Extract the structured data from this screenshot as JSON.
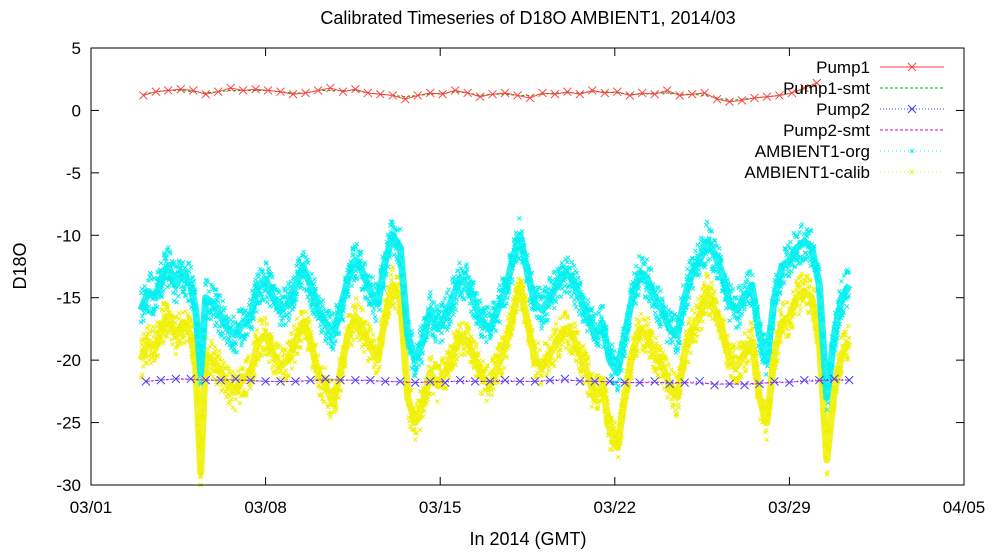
{
  "chart_data": {
    "type": "line",
    "title": "Calibrated Timeseries of D18O AMBIENT1, 2014/03",
    "xlabel": "In 2014 (GMT)",
    "ylabel": "D18O",
    "x_ticks": [
      "03/01",
      "03/08",
      "03/15",
      "03/22",
      "03/29",
      "04/05"
    ],
    "x_tick_days": [
      1,
      8,
      15,
      22,
      29,
      36
    ],
    "xlim": [
      1,
      36
    ],
    "ylim": [
      -30,
      5
    ],
    "y_ticks": [
      5,
      0,
      -5,
      -10,
      -15,
      -20,
      -25,
      -30
    ],
    "grid": false,
    "legend_position": "top-right",
    "series": [
      {
        "name": "Pump1",
        "color": "#ff4040",
        "marker": "x",
        "x": [
          3.1,
          3.6,
          4.1,
          4.6,
          5.1,
          5.6,
          6.1,
          6.6,
          7.1,
          7.6,
          8.1,
          8.6,
          9.1,
          9.6,
          10.1,
          10.6,
          11.1,
          11.6,
          12.1,
          12.6,
          13.1,
          13.6,
          14.1,
          14.6,
          15.1,
          15.6,
          16.1,
          16.6,
          17.1,
          17.6,
          18.1,
          18.6,
          19.1,
          19.6,
          20.1,
          20.6,
          21.1,
          21.6,
          22.1,
          22.6,
          23.1,
          23.6,
          24.1,
          24.6,
          25.1,
          25.6,
          26.1,
          26.6,
          27.1,
          27.6,
          28.1,
          28.6,
          29.1,
          29.6,
          30.1
        ],
        "y": [
          1.2,
          1.5,
          1.6,
          1.7,
          1.6,
          1.3,
          1.5,
          1.8,
          1.6,
          1.7,
          1.6,
          1.5,
          1.3,
          1.4,
          1.6,
          1.8,
          1.5,
          1.7,
          1.4,
          1.3,
          1.2,
          0.9,
          1.2,
          1.4,
          1.3,
          1.6,
          1.4,
          1.1,
          1.3,
          1.4,
          1.2,
          1.0,
          1.4,
          1.3,
          1.5,
          1.3,
          1.6,
          1.4,
          1.5,
          1.2,
          1.4,
          1.3,
          1.6,
          1.2,
          1.3,
          1.4,
          0.9,
          0.7,
          0.8,
          1.0,
          1.1,
          1.2,
          1.4,
          1.8,
          2.2
        ]
      },
      {
        "name": "Pump1-smt",
        "color": "#00b000",
        "marker": "none",
        "x": [
          3.1,
          3.6,
          4.1,
          4.6,
          5.1,
          5.6,
          6.1,
          6.6,
          7.1,
          7.6,
          8.1,
          8.6,
          9.1,
          9.6,
          10.1,
          10.6,
          11.1,
          11.6,
          12.1,
          12.6,
          13.1,
          13.6,
          14.1,
          14.6,
          15.1,
          15.6,
          16.1,
          16.6,
          17.1,
          17.6,
          18.1,
          18.6,
          19.1,
          19.6,
          20.1,
          20.6,
          21.1,
          21.6,
          22.1,
          22.6,
          23.1,
          23.6,
          24.1,
          24.6,
          25.1,
          25.6,
          26.1,
          26.6,
          27.1,
          27.6,
          28.1,
          28.6,
          29.1,
          29.6,
          30.1
        ],
        "y": [
          1.3,
          1.5,
          1.6,
          1.6,
          1.5,
          1.4,
          1.5,
          1.6,
          1.6,
          1.6,
          1.6,
          1.5,
          1.4,
          1.4,
          1.6,
          1.6,
          1.6,
          1.6,
          1.4,
          1.3,
          1.2,
          1.1,
          1.2,
          1.3,
          1.4,
          1.5,
          1.4,
          1.2,
          1.3,
          1.3,
          1.2,
          1.2,
          1.3,
          1.4,
          1.4,
          1.4,
          1.5,
          1.5,
          1.4,
          1.3,
          1.3,
          1.4,
          1.4,
          1.3,
          1.3,
          1.2,
          1.0,
          0.8,
          0.9,
          1.0,
          1.1,
          1.2,
          1.4,
          1.7,
          2.0
        ]
      },
      {
        "name": "Pump2",
        "color": "#4040ff",
        "marker": "x",
        "x": [
          3.2,
          3.8,
          4.4,
          5.0,
          5.6,
          6.2,
          6.8,
          7.4,
          8.0,
          8.6,
          9.2,
          9.8,
          10.4,
          11.0,
          11.6,
          12.2,
          12.8,
          13.4,
          14.0,
          14.6,
          15.2,
          15.8,
          16.4,
          17.0,
          17.6,
          18.2,
          18.8,
          19.4,
          20.0,
          20.6,
          21.2,
          21.8,
          22.4,
          23.0,
          23.6,
          24.2,
          24.8,
          25.4,
          26.0,
          26.6,
          27.2,
          27.8,
          28.4,
          29.0,
          29.6,
          30.2,
          30.8,
          31.4
        ],
        "y": [
          -21.7,
          -21.6,
          -21.5,
          -21.5,
          -21.6,
          -21.6,
          -21.5,
          -21.6,
          -21.7,
          -21.7,
          -21.7,
          -21.6,
          -21.5,
          -21.6,
          -21.6,
          -21.6,
          -21.7,
          -21.7,
          -21.8,
          -21.7,
          -21.8,
          -21.6,
          -21.7,
          -21.7,
          -21.6,
          -21.7,
          -21.7,
          -21.6,
          -21.5,
          -21.7,
          -21.7,
          -21.7,
          -21.8,
          -21.8,
          -21.7,
          -21.9,
          -21.8,
          -21.7,
          -22.0,
          -21.9,
          -22.0,
          -21.9,
          -21.7,
          -21.8,
          -21.6,
          -21.6,
          -21.5,
          -21.6
        ]
      },
      {
        "name": "Pump2-smt",
        "color": "#e000e0",
        "marker": "none",
        "x": [
          3.2,
          4.4,
          5.6,
          6.8,
          8.0,
          9.2,
          10.4,
          11.6,
          12.8,
          14.0,
          15.2,
          16.4,
          17.6,
          18.8,
          20.0,
          21.2,
          22.4,
          23.6,
          24.8,
          26.0,
          27.2,
          28.4,
          29.6,
          30.8,
          31.4
        ],
        "y": [
          -21.7,
          -21.5,
          -21.6,
          -21.6,
          -21.7,
          -21.7,
          -21.6,
          -21.6,
          -21.7,
          -21.8,
          -21.7,
          -21.7,
          -21.7,
          -21.7,
          -21.6,
          -21.7,
          -21.8,
          -21.8,
          -21.8,
          -21.9,
          -21.9,
          -21.8,
          -21.7,
          -21.6,
          -21.6
        ]
      },
      {
        "name": "AMBIENT1-org",
        "color": "#00f0f0",
        "marker": "dots",
        "x": [
          3.0,
          3.3,
          3.6,
          3.9,
          4.1,
          4.4,
          4.7,
          5.0,
          5.2,
          5.4,
          5.6,
          5.9,
          6.2,
          6.5,
          6.8,
          7.1,
          7.4,
          7.7,
          8.0,
          8.3,
          8.6,
          8.9,
          9.2,
          9.5,
          9.8,
          10.1,
          10.4,
          10.7,
          11.0,
          11.3,
          11.6,
          11.9,
          12.2,
          12.5,
          12.8,
          13.1,
          13.4,
          13.7,
          14.0,
          14.3,
          14.6,
          14.9,
          15.2,
          15.5,
          15.8,
          16.1,
          16.4,
          16.7,
          17.0,
          17.3,
          17.6,
          17.9,
          18.2,
          18.5,
          18.8,
          19.1,
          19.4,
          19.7,
          20.0,
          20.3,
          20.6,
          20.9,
          21.2,
          21.5,
          21.8,
          22.1,
          22.4,
          22.7,
          23.0,
          23.3,
          23.6,
          23.9,
          24.2,
          24.5,
          24.8,
          25.1,
          25.4,
          25.7,
          26.0,
          26.3,
          26.6,
          26.9,
          27.2,
          27.5,
          27.8,
          28.1,
          28.4,
          28.7,
          29.0,
          29.3,
          29.6,
          29.9,
          30.2,
          30.5,
          30.8,
          31.1,
          31.4
        ],
        "y": [
          -16.0,
          -14.5,
          -15.0,
          -13.0,
          -12.5,
          -14.0,
          -13.0,
          -14.0,
          -16.0,
          -21.0,
          -15.0,
          -15.5,
          -16.5,
          -17.5,
          -18.0,
          -17.0,
          -16.5,
          -14.0,
          -13.5,
          -15.0,
          -16.0,
          -15.5,
          -14.0,
          -12.5,
          -14.0,
          -16.0,
          -17.0,
          -18.0,
          -16.0,
          -13.5,
          -12.0,
          -13.0,
          -14.5,
          -15.5,
          -12.0,
          -10.0,
          -11.0,
          -18.0,
          -20.0,
          -18.5,
          -16.0,
          -17.5,
          -16.5,
          -15.0,
          -13.5,
          -14.0,
          -15.5,
          -17.0,
          -17.5,
          -16.0,
          -14.5,
          -12.0,
          -10.0,
          -13.0,
          -15.5,
          -16.0,
          -15.0,
          -14.0,
          -13.0,
          -13.5,
          -15.0,
          -16.5,
          -18.0,
          -17.0,
          -20.0,
          -21.0,
          -18.0,
          -15.0,
          -13.0,
          -13.5,
          -15.0,
          -16.0,
          -17.5,
          -18.0,
          -15.0,
          -13.0,
          -12.0,
          -10.5,
          -11.5,
          -13.0,
          -15.5,
          -16.0,
          -15.0,
          -14.0,
          -18.0,
          -20.0,
          -15.0,
          -12.5,
          -12.0,
          -11.0,
          -10.5,
          -11.0,
          -14.0,
          -23.0,
          -18.0,
          -15.0,
          -14.0
        ]
      },
      {
        "name": "AMBIENT1-calib",
        "color": "#f0f000",
        "marker": "dots",
        "x": [
          3.0,
          3.3,
          3.6,
          3.9,
          4.1,
          4.4,
          4.7,
          5.0,
          5.2,
          5.4,
          5.6,
          5.9,
          6.2,
          6.5,
          6.8,
          7.1,
          7.4,
          7.7,
          8.0,
          8.3,
          8.6,
          8.9,
          9.2,
          9.5,
          9.8,
          10.1,
          10.4,
          10.7,
          11.0,
          11.3,
          11.6,
          11.9,
          12.2,
          12.5,
          12.8,
          13.1,
          13.4,
          13.7,
          14.0,
          14.3,
          14.6,
          14.9,
          15.2,
          15.5,
          15.8,
          16.1,
          16.4,
          16.7,
          17.0,
          17.3,
          17.6,
          17.9,
          18.2,
          18.5,
          18.8,
          19.1,
          19.4,
          19.7,
          20.0,
          20.3,
          20.6,
          20.9,
          21.2,
          21.5,
          21.8,
          22.1,
          22.4,
          22.7,
          23.0,
          23.3,
          23.6,
          23.9,
          24.2,
          24.5,
          24.8,
          25.1,
          25.4,
          25.7,
          26.0,
          26.3,
          26.6,
          26.9,
          27.2,
          27.5,
          27.8,
          28.1,
          28.4,
          28.7,
          29.0,
          29.3,
          29.6,
          29.9,
          30.2,
          30.5,
          30.8,
          31.1,
          31.4
        ],
        "y": [
          -20.0,
          -18.5,
          -19.0,
          -17.0,
          -16.5,
          -18.0,
          -17.0,
          -18.0,
          -20.5,
          -29.0,
          -19.5,
          -20.0,
          -21.0,
          -22.0,
          -22.5,
          -21.5,
          -21.0,
          -18.5,
          -18.0,
          -19.5,
          -20.5,
          -20.0,
          -18.5,
          -17.0,
          -18.5,
          -21.0,
          -22.0,
          -23.5,
          -21.0,
          -18.0,
          -16.5,
          -17.5,
          -19.0,
          -20.0,
          -16.5,
          -14.0,
          -15.0,
          -23.0,
          -25.0,
          -23.5,
          -21.0,
          -22.0,
          -21.0,
          -19.5,
          -18.0,
          -18.5,
          -20.0,
          -21.5,
          -22.0,
          -20.5,
          -19.0,
          -16.5,
          -14.0,
          -17.0,
          -20.0,
          -20.5,
          -19.5,
          -18.5,
          -17.5,
          -18.0,
          -19.5,
          -21.0,
          -23.0,
          -22.0,
          -25.5,
          -27.0,
          -23.0,
          -19.5,
          -17.5,
          -18.0,
          -19.5,
          -20.5,
          -22.0,
          -23.0,
          -19.5,
          -17.5,
          -16.5,
          -14.5,
          -16.0,
          -17.5,
          -20.0,
          -20.5,
          -19.5,
          -18.5,
          -23.0,
          -25.0,
          -19.5,
          -17.0,
          -16.5,
          -15.0,
          -14.5,
          -15.0,
          -18.5,
          -28.0,
          -22.5,
          -19.5,
          -18.5
        ]
      }
    ]
  }
}
